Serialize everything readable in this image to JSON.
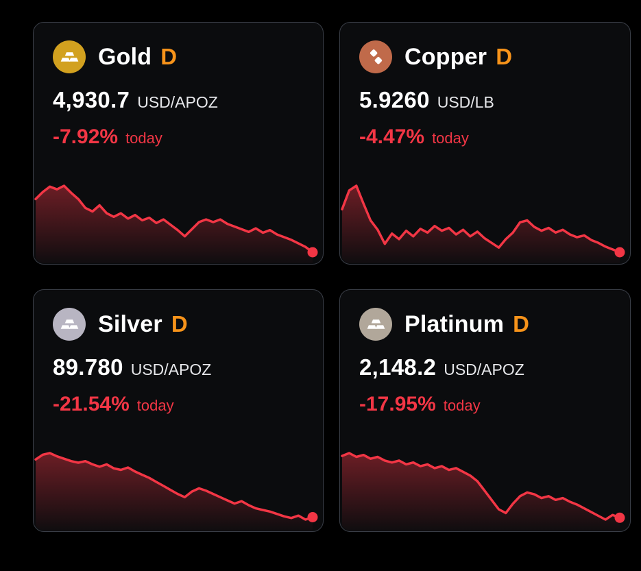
{
  "page": {
    "background": "#000000"
  },
  "colors": {
    "negative": "#f23645",
    "timeframe_accent": "#f7931a",
    "card_background": "#0b0c0e",
    "card_border": "#3a3e47",
    "text_primary": "#ffffff"
  },
  "cards": [
    {
      "name": "Gold",
      "timeframe": "D",
      "price": "4,930.7",
      "unit": "USD/APOZ",
      "change": "-7.92%",
      "period": "today",
      "icon": "gold-bars-icon",
      "icon_bg": "#d2a11f"
    },
    {
      "name": "Copper",
      "timeframe": "D",
      "price": "5.9260",
      "unit": "USD/LB",
      "change": "-4.47%",
      "period": "today",
      "icon": "copper-nuggets-icon",
      "icon_bg": "#c06a4a"
    },
    {
      "name": "Silver",
      "timeframe": "D",
      "price": "89.780",
      "unit": "USD/APOZ",
      "change": "-21.54%",
      "period": "today",
      "icon": "silver-bars-icon",
      "icon_bg": "#b8b5c2"
    },
    {
      "name": "Platinum",
      "timeframe": "D",
      "price": "2,148.2",
      "unit": "USD/APOZ",
      "change": "-17.95%",
      "period": "today",
      "icon": "platinum-bars-icon",
      "icon_bg": "#b1a79a"
    }
  ],
  "chart_data": [
    {
      "type": "area",
      "title": "Gold, D",
      "current_price": 4930.7,
      "change_percent": -7.92,
      "line_color": "#f23645",
      "grid": false,
      "values": [
        0.78,
        0.86,
        0.92,
        0.89,
        0.93,
        0.85,
        0.78,
        0.68,
        0.64,
        0.71,
        0.62,
        0.58,
        0.62,
        0.56,
        0.6,
        0.54,
        0.57,
        0.51,
        0.55,
        0.49,
        0.43,
        0.36,
        0.44,
        0.52,
        0.55,
        0.52,
        0.55,
        0.5,
        0.47,
        0.44,
        0.41,
        0.45,
        0.4,
        0.43,
        0.38,
        0.35,
        0.32,
        0.28,
        0.24,
        0.18
      ]
    },
    {
      "type": "area",
      "title": "Copper, D",
      "current_price": 5.926,
      "change_percent": -4.47,
      "line_color": "#f23645",
      "grid": false,
      "values": [
        0.7,
        0.9,
        0.95,
        0.76,
        0.58,
        0.48,
        0.33,
        0.44,
        0.38,
        0.47,
        0.41,
        0.49,
        0.45,
        0.52,
        0.47,
        0.5,
        0.43,
        0.48,
        0.41,
        0.46,
        0.39,
        0.34,
        0.29,
        0.38,
        0.45,
        0.56,
        0.58,
        0.51,
        0.47,
        0.5,
        0.45,
        0.48,
        0.43,
        0.4,
        0.42,
        0.37,
        0.34,
        0.3,
        0.27,
        0.24
      ]
    },
    {
      "type": "area",
      "title": "Silver, D",
      "current_price": 89.78,
      "change_percent": -21.54,
      "line_color": "#f23645",
      "grid": false,
      "values": [
        0.82,
        0.88,
        0.9,
        0.86,
        0.83,
        0.8,
        0.78,
        0.8,
        0.76,
        0.73,
        0.76,
        0.71,
        0.69,
        0.72,
        0.67,
        0.63,
        0.59,
        0.54,
        0.49,
        0.44,
        0.39,
        0.35,
        0.42,
        0.46,
        0.43,
        0.39,
        0.35,
        0.31,
        0.27,
        0.3,
        0.25,
        0.21,
        0.19,
        0.17,
        0.14,
        0.11,
        0.09,
        0.12,
        0.07,
        0.1
      ]
    },
    {
      "type": "area",
      "title": "Platinum, D",
      "current_price": 2148.2,
      "change_percent": -17.95,
      "line_color": "#f23645",
      "grid": false,
      "values": [
        0.85,
        0.88,
        0.84,
        0.86,
        0.82,
        0.84,
        0.8,
        0.78,
        0.8,
        0.76,
        0.78,
        0.74,
        0.76,
        0.72,
        0.74,
        0.7,
        0.72,
        0.68,
        0.64,
        0.58,
        0.48,
        0.38,
        0.28,
        0.24,
        0.34,
        0.42,
        0.46,
        0.44,
        0.4,
        0.42,
        0.38,
        0.4,
        0.36,
        0.33,
        0.29,
        0.25,
        0.21,
        0.17,
        0.22,
        0.19
      ]
    }
  ]
}
